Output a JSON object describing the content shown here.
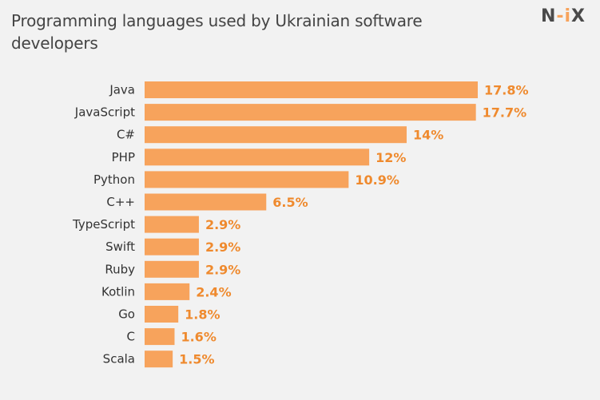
{
  "header": {
    "title": "Programming languages used by Ukrainian software developers",
    "logo": {
      "part1": "N",
      "part2": "-i",
      "part3": "X"
    }
  },
  "colors": {
    "bar": "#f7a35c",
    "value_label": "#ef8a2e",
    "category_label": "#333333",
    "title": "#444444"
  },
  "chart_data": {
    "type": "bar",
    "orientation": "horizontal",
    "title": "Programming languages used by Ukrainian software developers",
    "xlabel": "",
    "ylabel": "",
    "categories": [
      "Java",
      "JavaScript",
      "C#",
      "PHP",
      "Python",
      "C++",
      "TypeScript",
      "Swift",
      "Ruby",
      "Kotlin",
      "Go",
      "C",
      "Scala"
    ],
    "values": [
      17.8,
      17.7,
      14,
      12,
      10.9,
      6.5,
      2.9,
      2.9,
      2.9,
      2.4,
      1.8,
      1.6,
      1.5
    ],
    "value_labels": [
      "17.8%",
      "17.7%",
      "14%",
      "12%",
      "10.9%",
      "6.5%",
      "2.9%",
      "2.9%",
      "2.9%",
      "2.4%",
      "1.8%",
      "1.6%",
      "1.5%"
    ],
    "xlim": [
      0,
      17.8
    ],
    "grid": false,
    "legend": "none"
  }
}
